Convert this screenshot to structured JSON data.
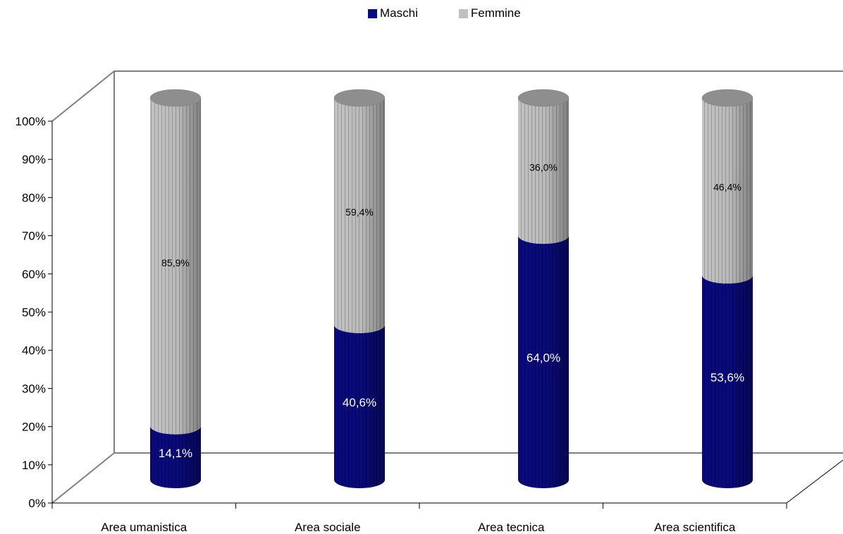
{
  "chart_data": {
    "type": "bar",
    "stacked": true,
    "percent_stacked": true,
    "style": "3d-cylinder",
    "categories": [
      "Area umanistica",
      "Area sociale",
      "Area tecnica",
      "Area scientifica"
    ],
    "series": [
      {
        "name": "Maschi",
        "values": [
          14.1,
          40.6,
          64.0,
          53.6
        ],
        "labels": [
          "14,1%",
          "40,6%",
          "64,0%",
          "53,6%"
        ],
        "color": "#0a0a80"
      },
      {
        "name": "Femmine",
        "values": [
          85.9,
          59.4,
          36.0,
          46.4
        ],
        "labels": [
          "85,9%",
          "59,4%",
          "36,0%",
          "46,4%"
        ],
        "color": "#c0c0c0"
      }
    ],
    "yticks": [
      "0%",
      "10%",
      "20%",
      "30%",
      "40%",
      "50%",
      "60%",
      "70%",
      "80%",
      "90%",
      "100%"
    ],
    "ylim": [
      0,
      100
    ],
    "legend_position": "top",
    "grid": false
  }
}
